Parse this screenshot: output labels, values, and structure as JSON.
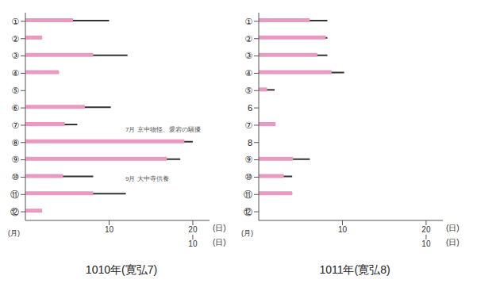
{
  "chart_data": [
    {
      "type": "bar",
      "orientation": "horizontal",
      "title": "1010年(寛弘7)",
      "grid": false,
      "categories": [
        "①",
        "②",
        "③",
        "④",
        "⑤",
        "⑥",
        "⑦",
        "⑧",
        "⑨",
        "⑩",
        "⑪",
        "⑫"
      ],
      "series": [
        {
          "color": "#333333",
          "values": [
            10,
            2,
            12.2,
            4,
            null,
            10.2,
            6.2,
            20,
            18.5,
            8.1,
            12,
            2
          ]
        },
        {
          "color": "#e89ac0",
          "values": [
            5.7,
            2,
            8.1,
            4,
            null,
            7.1,
            4.7,
            19,
            16.9,
            4.5,
            8.1,
            2
          ]
        }
      ],
      "xlim": [
        0,
        22
      ],
      "xticks": [
        10,
        20
      ],
      "xlabel": "(日)",
      "x2lim": [
        0,
        11
      ],
      "x2ticks": [
        10
      ],
      "x2label": "(日)",
      "ylabel": "(月)",
      "annotations": [
        "7月 京中物怪、愛宕の騒擾",
        "9月 大中寺供養"
      ]
    },
    {
      "type": "bar",
      "orientation": "horizontal",
      "title": "1011年(寛弘8)",
      "grid": false,
      "categories": [
        "①",
        "②",
        "③",
        "④",
        "⑤",
        "6",
        "⑦",
        "8",
        "⑨",
        "⑩",
        "⑪",
        "⑫"
      ],
      "series": [
        {
          "color": "#333333",
          "values": [
            8.2,
            8.2,
            8.2,
            10.2,
            1.9,
            null,
            2,
            null,
            6.1,
            4,
            4,
            null
          ]
        },
        {
          "color": "#e89ac0",
          "values": [
            6.1,
            8,
            7,
            8.7,
            1,
            null,
            2,
            null,
            4.1,
            3,
            4,
            null
          ]
        }
      ],
      "xlim": [
        0,
        22
      ],
      "xticks": [
        10,
        20
      ],
      "xlabel": "(日)",
      "x2lim": [
        0,
        11
      ],
      "x2ticks": [
        10
      ],
      "x2label": "(日)",
      "ylabel": "(月)"
    }
  ]
}
